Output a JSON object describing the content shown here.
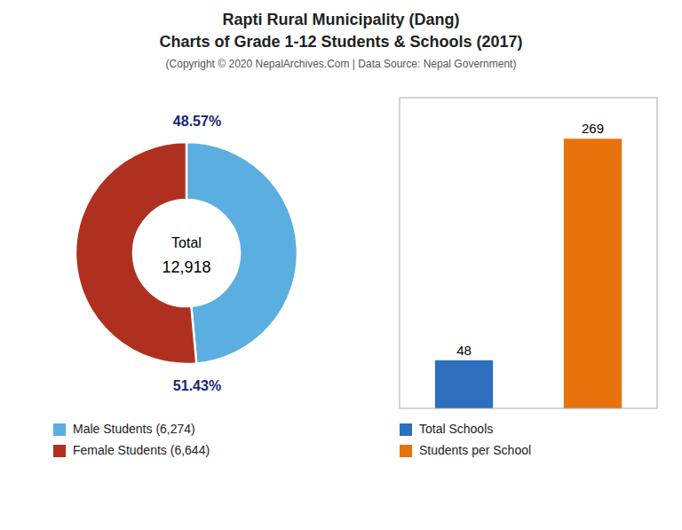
{
  "title": [
    "Rapti Rural Municipality (Dang)",
    "Charts of Grade 1-12 Students & Schools (2017)"
  ],
  "subtitle": "(Copyright © 2020 NepalArchives.Com | Data Source: Nepal Government)",
  "chart_data": [
    {
      "type": "pie",
      "categories": [
        "Male Students (6,274)",
        "Female Students (6,644)"
      ],
      "values": [
        48.57,
        51.43
      ],
      "value_labels": [
        "48.57%",
        "51.43%"
      ],
      "colors": [
        "#5aaee0",
        "#b03020"
      ],
      "data_labels": true,
      "annotations": [
        "Total",
        "12,918"
      ],
      "legend": "bottom"
    },
    {
      "type": "bar",
      "categories": [
        "Total Schools",
        "Students per School"
      ],
      "values": [
        48,
        269
      ],
      "colors": [
        "#2e6fbd",
        "#e8720c"
      ],
      "ylim": [
        0,
        310
      ],
      "data_labels": true,
      "tick_labels": false,
      "legend": "bottom"
    }
  ]
}
